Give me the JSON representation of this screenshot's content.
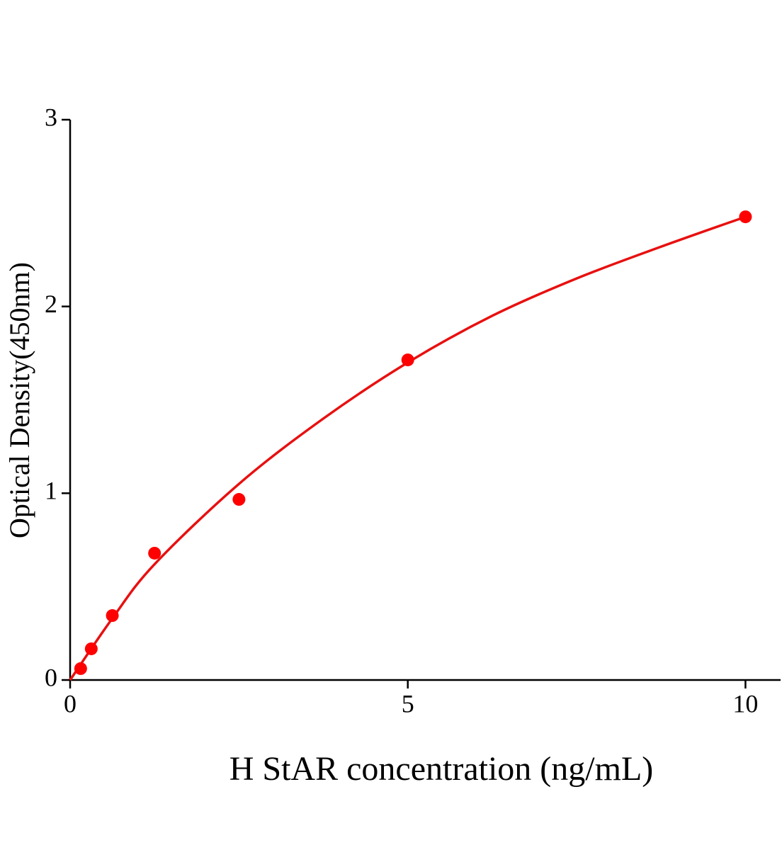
{
  "chart_data": {
    "type": "scatter",
    "x_label": "H StAR concentration (ng/mL)",
    "y_label": "Optical Density(450nm)",
    "xlim": [
      0,
      10.52
    ],
    "ylim": [
      0,
      3
    ],
    "xticks": [
      0,
      5,
      10
    ],
    "yticks": [
      0,
      1,
      2,
      3
    ],
    "series": [
      {
        "mode": "markers",
        "color": "#ff0000",
        "x": [
          0.156,
          0.313,
          0.625,
          1.25,
          2.5,
          5,
          10
        ],
        "values": [
          0.061,
          0.167,
          0.345,
          0.679,
          0.967,
          1.714,
          2.48
        ]
      },
      {
        "mode": "line",
        "color": "#e81010",
        "x": [
          0,
          0.625,
          1.25,
          2.5,
          3.75,
          5,
          6.25,
          7.5,
          8.75,
          10
        ],
        "values": [
          0,
          0.33,
          0.62,
          1.05,
          1.4,
          1.7,
          1.95,
          2.15,
          2.32,
          2.48
        ]
      }
    ]
  }
}
